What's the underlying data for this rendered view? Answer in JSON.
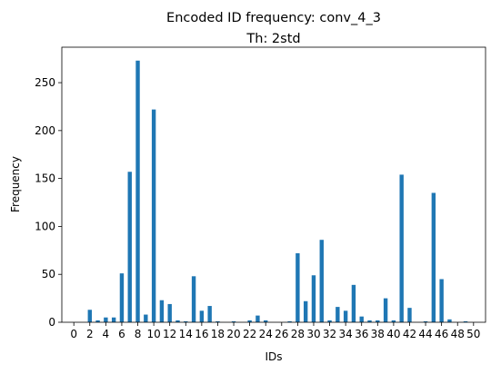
{
  "chart_data": {
    "type": "bar",
    "title": "Encoded ID frequency: conv_4_3",
    "subtitle": "Th: 2std",
    "xlabel": "IDs",
    "ylabel": "Frequency",
    "xlim": [
      -1.5,
      51.5
    ],
    "ylim": [
      0,
      287
    ],
    "xticks": [
      "0",
      "2",
      "4",
      "6",
      "8",
      "10",
      "12",
      "14",
      "16",
      "18",
      "20",
      "22",
      "24",
      "26",
      "28",
      "30",
      "32",
      "34",
      "36",
      "38",
      "40",
      "42",
      "44",
      "46",
      "48",
      "50"
    ],
    "yticks": [
      "0",
      "50",
      "100",
      "150",
      "200",
      "250"
    ],
    "bar_color": "#1f77b4",
    "x": [
      0,
      1,
      2,
      3,
      4,
      5,
      6,
      7,
      8,
      9,
      10,
      11,
      12,
      13,
      14,
      15,
      16,
      17,
      18,
      19,
      20,
      21,
      22,
      23,
      24,
      25,
      26,
      27,
      28,
      29,
      30,
      31,
      32,
      33,
      34,
      35,
      36,
      37,
      38,
      39,
      40,
      41,
      42,
      43,
      44,
      45,
      46,
      47,
      48,
      49,
      50
    ],
    "values": [
      0,
      0,
      13,
      2,
      5,
      5,
      51,
      157,
      273,
      8,
      222,
      23,
      19,
      2,
      1,
      48,
      12,
      17,
      1,
      0,
      1,
      0,
      2,
      7,
      2,
      0,
      0,
      1,
      72,
      22,
      49,
      86,
      2,
      16,
      12,
      39,
      6,
      2,
      2,
      25,
      2,
      154,
      15,
      0,
      1,
      135,
      45,
      3,
      0,
      1,
      0
    ]
  }
}
